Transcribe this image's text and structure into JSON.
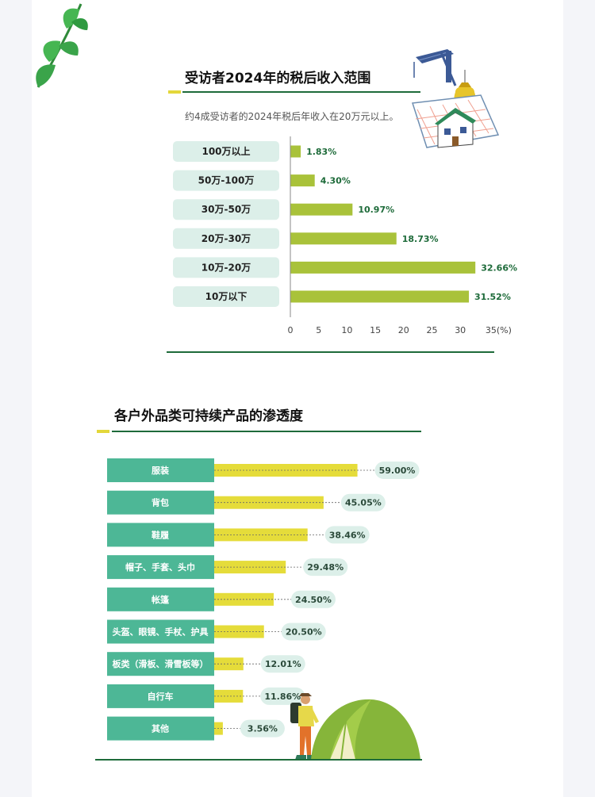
{
  "colors": {
    "dark_green": "#1e6b3a",
    "yellow_accent": "#e3d73a",
    "olive_bar": "#a9c23a",
    "label_bg": "#dcefe9",
    "teal_label": "#4db796",
    "yellow_bar": "#e5dc3a",
    "value_text": "#1e6b3a"
  },
  "decorations": [
    "leaf-icon",
    "crane-house-icon",
    "coin-bag-icon",
    "hiker-icon",
    "tent-icon"
  ],
  "chart_data": [
    {
      "type": "bar",
      "orientation": "horizontal",
      "title": "受访者2024年的税后收入范围",
      "subtitle": "约4成受访者的2024年税后年收入在20万元以上。",
      "categories": [
        "100万以上",
        "50万-100万",
        "30万-50万",
        "20万-30万",
        "10万-20万",
        "10万以下"
      ],
      "values": [
        1.83,
        4.3,
        10.97,
        18.73,
        32.66,
        31.52
      ],
      "value_labels": [
        "1.83%",
        "4.30%",
        "10.97%",
        "18.73%",
        "32.66%",
        "31.52%"
      ],
      "xlim": [
        0,
        35
      ],
      "xticks": [
        0,
        5,
        10,
        15,
        20,
        25,
        30,
        35
      ],
      "tick_labels": [
        "0",
        "5",
        "10",
        "15",
        "20",
        "25",
        "30",
        "35(%)"
      ],
      "grid": false
    },
    {
      "type": "bar",
      "orientation": "horizontal",
      "title": "各户外品类可持续产品的渗透度",
      "categories": [
        "服装",
        "背包",
        "鞋履",
        "帽子、手套、头巾",
        "帐篷",
        "头盔、眼镜、手杖、护具",
        "板类（滑板、滑雪板等）",
        "自行车",
        "其他"
      ],
      "values": [
        59.0,
        45.05,
        38.46,
        29.48,
        24.5,
        20.5,
        12.01,
        11.86,
        3.56
      ],
      "value_labels": [
        "59.00%",
        "45.05%",
        "38.46%",
        "29.48%",
        "24.50%",
        "20.50%",
        "12.01%",
        "11.86%",
        "3.56%"
      ],
      "xlim": [
        0,
        59
      ],
      "grid": false
    }
  ]
}
